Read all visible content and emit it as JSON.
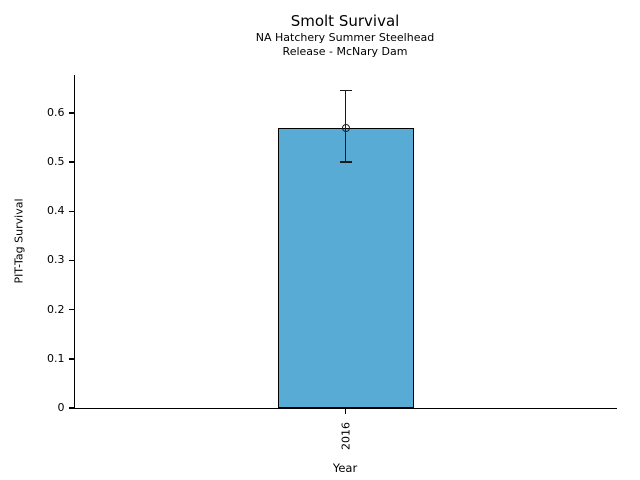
{
  "chart_data": {
    "type": "bar",
    "title": "Smolt Survival",
    "subtitle1": "NA Hatchery Summer Steelhead",
    "subtitle2": "Release - McNary Dam",
    "xlabel": "Year",
    "ylabel": "PIT-Tag Survival",
    "categories": [
      "2016"
    ],
    "values": [
      0.57
    ],
    "error_low": [
      0.5
    ],
    "error_high": [
      0.645
    ],
    "ylim": [
      0,
      0.677
    ],
    "yticks": [
      0,
      0.1,
      0.2,
      0.3,
      0.4,
      0.5,
      0.6
    ],
    "ytick_labels": [
      "0",
      "0.1",
      "0.2",
      "0.3",
      "0.4",
      "0.5",
      "0.6"
    ],
    "grid": false,
    "legend": false,
    "marker": "open-circle",
    "bar_color": "#58ABD5",
    "bar_edge_color": "#000000",
    "error_color": "#1a1a1a",
    "text_color": "#000000",
    "background_color": "#ffffff"
  }
}
